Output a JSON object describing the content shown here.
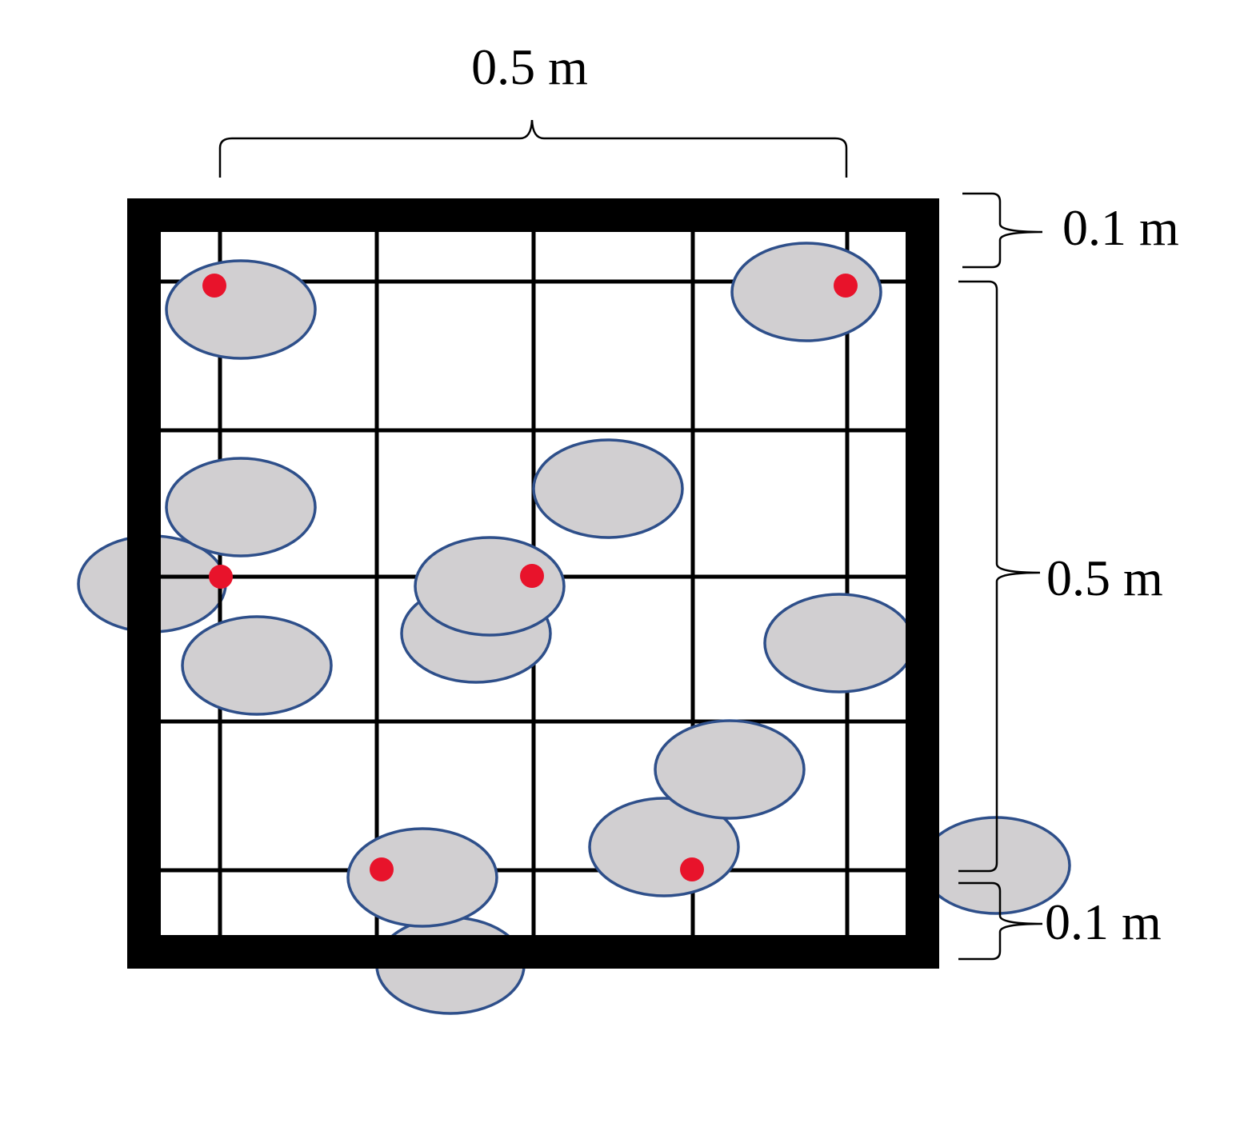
{
  "labels": {
    "top_width": "0.5 m",
    "right_top_margin": "0.1 m",
    "right_height": "0.5 m",
    "right_bottom_margin": "0.1 m"
  },
  "colors": {
    "frame": "#000000",
    "grid": "#000000",
    "stone_fill": "#d1cfd1",
    "stone_stroke": "#2e4f8a",
    "sample_point": "#e8132b"
  }
}
